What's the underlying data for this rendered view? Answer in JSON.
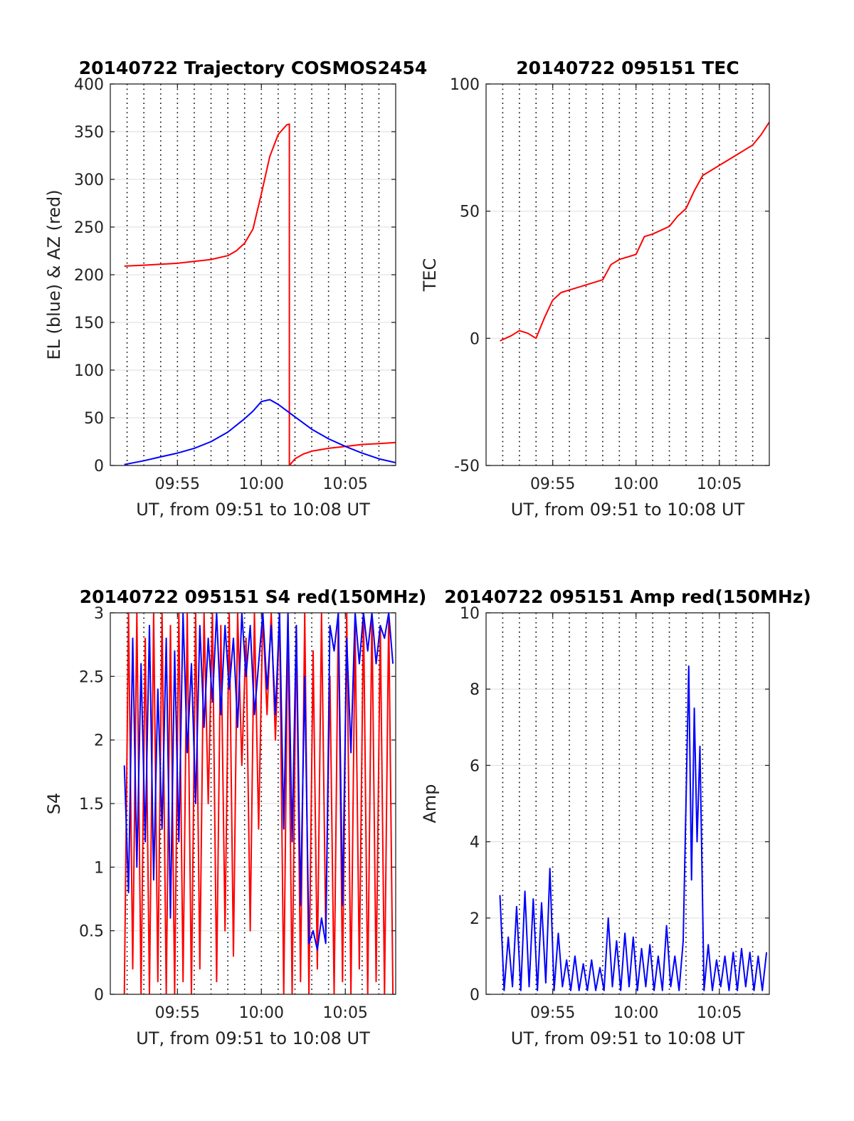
{
  "chart_data": [
    {
      "type": "line",
      "title": "20140722 Trajectory COSMOS2454",
      "xlabel": "UT, from 09:51 to 10:08 UT",
      "ylabel": "EL (blue) & AZ (red)",
      "xlim": [
        "09:51",
        "10:08"
      ],
      "ylim": [
        0,
        400
      ],
      "grid": true,
      "x_ticks": [
        "09:55",
        "10:00",
        "10:05"
      ],
      "y_ticks": [
        "0",
        "50",
        "100",
        "150",
        "200",
        "250",
        "300",
        "350",
        "400"
      ],
      "series": [
        {
          "color": "#ff0000",
          "x": [
            "09:51:50",
            "09:53",
            "09:54",
            "09:55",
            "09:56",
            "09:57",
            "09:58",
            "09:58:30",
            "09:59",
            "09:59:30",
            "10:00",
            "10:00:30",
            "10:01",
            "10:01:30",
            "10:01:40",
            "10:01:40",
            "10:02",
            "10:02:30",
            "10:03",
            "10:04",
            "10:05",
            "10:06",
            "10:07",
            "10:08"
          ],
          "values": [
            209,
            210,
            211,
            212,
            214,
            216,
            220,
            225,
            233,
            248,
            285,
            324,
            347,
            357,
            358,
            0,
            7,
            12,
            15,
            18,
            20,
            22,
            23,
            24
          ]
        },
        {
          "color": "#0000ff",
          "x": [
            "09:51:50",
            "09:53",
            "09:54",
            "09:55",
            "09:56",
            "09:57",
            "09:58",
            "09:59",
            "09:59:30",
            "10:00",
            "10:00:30",
            "10:01",
            "10:02",
            "10:03",
            "10:04",
            "10:05",
            "10:06",
            "10:07",
            "10:08"
          ],
          "values": [
            1,
            5,
            9,
            13,
            18,
            25,
            35,
            49,
            57,
            67,
            69,
            64,
            51,
            38,
            28,
            20,
            13,
            7,
            3
          ]
        }
      ]
    },
    {
      "type": "line",
      "title": "20140722 095151 TEC",
      "xlabel": "UT, from 09:51 to 10:08 UT",
      "ylabel": "TEC",
      "xlim": [
        "09:51",
        "10:08"
      ],
      "ylim": [
        -50,
        100
      ],
      "grid": true,
      "x_ticks": [
        "09:55",
        "10:00",
        "10:05"
      ],
      "y_ticks": [
        "-50",
        "0",
        "50",
        "100"
      ],
      "series": [
        {
          "color": "#ff0000",
          "x": [
            "09:51:50",
            "09:52:30",
            "09:53",
            "09:53:30",
            "09:54",
            "09:54:30",
            "09:55",
            "09:55:30",
            "09:56",
            "09:57",
            "09:58",
            "09:58:30",
            "09:59",
            "10:00",
            "10:00:30",
            "10:01",
            "10:02",
            "10:02:30",
            "10:03",
            "10:03:30",
            "10:04",
            "10:05",
            "10:06",
            "10:07",
            "10:07:30",
            "10:08"
          ],
          "values": [
            -1,
            1,
            3,
            2,
            0,
            8,
            15,
            18,
            19,
            21,
            23,
            29,
            31,
            33,
            40,
            41,
            44,
            48,
            51,
            58,
            64,
            68,
            72,
            76,
            80,
            85
          ]
        }
      ]
    },
    {
      "type": "line",
      "title": "20140722 095151 S4 red(150MHz)",
      "xlabel": "UT, from 09:51 to 10:08 UT",
      "ylabel": "S4",
      "xlim": [
        "09:51",
        "10:08"
      ],
      "ylim": [
        0,
        3
      ],
      "grid": true,
      "x_ticks": [
        "09:55",
        "10:00",
        "10:05"
      ],
      "y_ticks": [
        "0",
        "0.5",
        "1",
        "1.5",
        "2",
        "2.5",
        "3"
      ],
      "series": [
        {
          "color": "#ff0000",
          "x": [
            "09:51:50",
            "09:52:05",
            "09:52:20",
            "09:52:35",
            "09:52:50",
            "09:53:05",
            "09:53:20",
            "09:53:35",
            "09:53:50",
            "09:54:05",
            "09:54:20",
            "09:54:35",
            "09:54:50",
            "09:55:05",
            "09:55:20",
            "09:55:35",
            "09:55:50",
            "09:56:05",
            "09:56:20",
            "09:56:35",
            "09:56:50",
            "09:57:05",
            "09:57:20",
            "09:57:35",
            "09:57:50",
            "09:58:05",
            "09:58:20",
            "09:58:35",
            "09:58:50",
            "09:59:05",
            "09:59:20",
            "09:59:35",
            "09:59:50",
            "10:00:05",
            "10:00:20",
            "10:00:35",
            "10:00:50",
            "10:01:05",
            "10:01:20",
            "10:01:35",
            "10:01:50",
            "10:02:05",
            "10:02:20",
            "10:02:35",
            "10:02:50",
            "10:03:05",
            "10:03:20",
            "10:03:35",
            "10:03:50",
            "10:04:05",
            "10:04:20",
            "10:04:35",
            "10:04:50",
            "10:05:05",
            "10:05:20",
            "10:05:35",
            "10:05:50",
            "10:06:05",
            "10:06:20",
            "10:06:35",
            "10:06:50",
            "10:07:05",
            "10:07:20",
            "10:07:35",
            "10:07:50"
          ],
          "values": [
            0,
            3,
            0.2,
            3,
            0,
            2.8,
            0,
            3,
            0.1,
            3,
            0,
            2.9,
            0,
            3,
            0.1,
            3,
            0,
            3,
            0.2,
            3,
            1.5,
            3,
            0.1,
            2.9,
            0.5,
            3,
            0.3,
            3,
            1.8,
            2.8,
            0.5,
            3,
            1.3,
            3,
            2.2,
            3,
            2,
            3,
            0,
            3,
            0,
            2.9,
            0.1,
            3,
            0,
            2.7,
            0.2,
            3,
            0.5,
            2.5,
            0,
            3,
            0.1,
            3,
            0,
            2.9,
            0.2,
            3,
            0,
            3,
            0.1,
            2.9,
            0,
            3,
            0
          ]
        },
        {
          "color": "#0000ff",
          "x": [
            "09:51:50",
            "09:52:05",
            "09:52:20",
            "09:52:35",
            "09:52:50",
            "09:53:05",
            "09:53:20",
            "09:53:35",
            "09:53:50",
            "09:54:05",
            "09:54:20",
            "09:54:35",
            "09:54:50",
            "09:55:05",
            "09:55:20",
            "09:55:35",
            "09:55:50",
            "09:56:05",
            "09:56:20",
            "09:56:35",
            "09:56:50",
            "09:57:05",
            "09:57:20",
            "09:57:35",
            "09:57:50",
            "09:58:05",
            "09:58:20",
            "09:58:35",
            "09:58:50",
            "09:59:05",
            "09:59:20",
            "09:59:35",
            "09:59:50",
            "10:00:05",
            "10:00:20",
            "10:00:35",
            "10:00:50",
            "10:01:05",
            "10:01:20",
            "10:01:35",
            "10:01:50",
            "10:02:05",
            "10:02:20",
            "10:02:35",
            "10:02:50",
            "10:03:05",
            "10:03:20",
            "10:03:35",
            "10:03:50",
            "10:04:05",
            "10:04:20",
            "10:04:35",
            "10:04:50",
            "10:05:05",
            "10:05:20",
            "10:05:35",
            "10:05:50",
            "10:06:05",
            "10:06:20",
            "10:06:35",
            "10:06:50",
            "10:07:05",
            "10:07:20",
            "10:07:35",
            "10:07:50"
          ],
          "values": [
            1.8,
            0.8,
            2.8,
            1,
            2.6,
            1.2,
            2.9,
            0.9,
            2.4,
            1.3,
            2.8,
            0.6,
            2.7,
            1.2,
            3,
            1.9,
            2.6,
            1.5,
            2.9,
            2.1,
            2.8,
            2.3,
            3,
            2.2,
            2.9,
            2.4,
            2.8,
            2.1,
            3,
            2.5,
            2.9,
            2.2,
            2.6,
            3,
            2.4,
            2.9,
            2.2,
            3,
            1.3,
            3,
            1.2,
            2.9,
            0.7,
            2.5,
            0.4,
            0.5,
            0.35,
            0.6,
            0.4,
            2.9,
            2.7,
            3,
            0.7,
            2.8,
            1.9,
            3,
            2.6,
            3,
            2.7,
            3,
            2.6,
            2.9,
            2.8,
            3,
            2.6
          ]
        }
      ]
    },
    {
      "type": "line",
      "title": "20140722 095151 Amp red(150MHz)",
      "xlabel": "UT, from 09:51 to 10:08 UT",
      "ylabel": "Amp",
      "xlim": [
        "09:51",
        "10:08"
      ],
      "ylim": [
        0,
        10
      ],
      "grid": true,
      "x_ticks": [
        "09:55",
        "10:00",
        "10:05"
      ],
      "y_ticks": [
        "0",
        "2",
        "4",
        "6",
        "8",
        "10"
      ],
      "series": [
        {
          "color": "#0000ff",
          "x": [
            "09:51:50",
            "09:52:05",
            "09:52:20",
            "09:52:35",
            "09:52:50",
            "09:53:05",
            "09:53:20",
            "09:53:35",
            "09:53:50",
            "09:54:05",
            "09:54:20",
            "09:54:35",
            "09:54:50",
            "09:55:05",
            "09:55:20",
            "09:55:35",
            "09:55:50",
            "09:56:05",
            "09:56:20",
            "09:56:35",
            "09:56:50",
            "09:57:05",
            "09:57:20",
            "09:57:35",
            "09:57:50",
            "09:58:05",
            "09:58:20",
            "09:58:35",
            "09:58:50",
            "09:59:05",
            "09:59:20",
            "09:59:35",
            "09:59:50",
            "10:00:05",
            "10:00:20",
            "10:00:35",
            "10:00:50",
            "10:01:05",
            "10:01:20",
            "10:01:35",
            "10:01:50",
            "10:02:05",
            "10:02:20",
            "10:02:35",
            "10:02:50",
            "10:03:00",
            "10:03:10",
            "10:03:20",
            "10:03:30",
            "10:03:40",
            "10:03:50",
            "10:04:05",
            "10:04:20",
            "10:04:35",
            "10:04:50",
            "10:05:05",
            "10:05:20",
            "10:05:35",
            "10:05:50",
            "10:06:05",
            "10:06:20",
            "10:06:35",
            "10:06:50",
            "10:07:05",
            "10:07:20",
            "10:07:35",
            "10:07:50"
          ],
          "values": [
            2.6,
            0.1,
            1.5,
            0.2,
            2.3,
            0.1,
            2.7,
            0.2,
            2.5,
            0.1,
            2.4,
            0.3,
            3.3,
            0.1,
            1.6,
            0.2,
            0.9,
            0.1,
            1,
            0.1,
            0.8,
            0.1,
            0.9,
            0.1,
            0.7,
            0.1,
            2,
            0.2,
            1.4,
            0.1,
            1.6,
            0.2,
            1.5,
            0.1,
            1.2,
            0.2,
            1.3,
            0.1,
            1,
            0.1,
            1.8,
            0.2,
            1,
            0.1,
            1.4,
            5,
            8.6,
            3,
            7.5,
            4,
            6.5,
            0.1,
            1.3,
            0.1,
            0.9,
            0.2,
            1,
            0.1,
            1.1,
            0.1,
            1.2,
            0.2,
            1.1,
            0.1,
            1,
            0.1,
            1.1
          ]
        }
      ]
    }
  ]
}
